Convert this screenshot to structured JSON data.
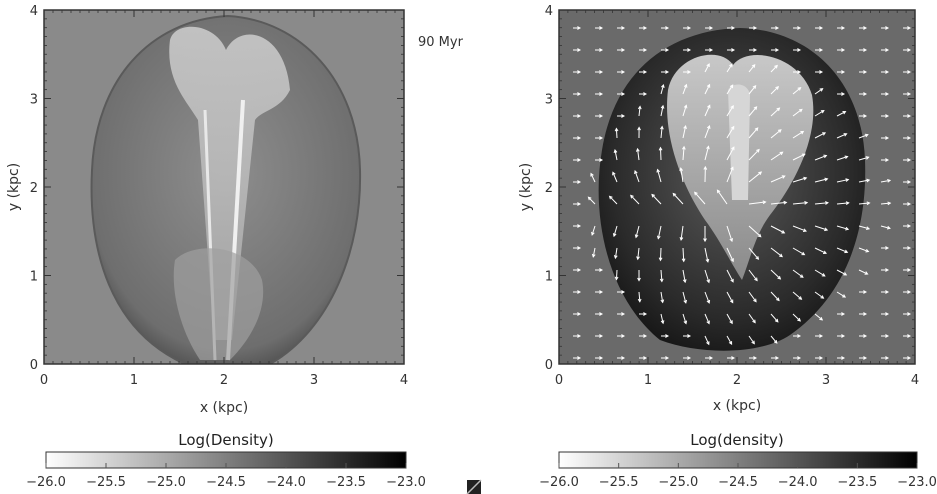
{
  "chart_data": [
    {
      "type": "heatmap",
      "quantity": "Log(Density)",
      "annotation": "90 Myr",
      "xlabel": "x (kpc)",
      "ylabel": "y (kpc)",
      "xlim": [
        0,
        4
      ],
      "ylim": [
        0,
        4
      ],
      "xticks": [
        "0",
        "1",
        "2",
        "3",
        "4"
      ],
      "yticks": [
        "0",
        "1",
        "2",
        "3",
        "4"
      ],
      "colorbar": {
        "title": "Log(Density)",
        "range": [
          -26.0,
          -23.0
        ],
        "ticks": [
          "−26.0",
          "−25.5",
          "−25.0",
          "−24.5",
          "−24.0",
          "−23.5",
          "−23.0"
        ],
        "colormap": "white-to-black"
      }
    },
    {
      "type": "heatmap",
      "quantity": "Log(density) with velocity vectors",
      "xlabel": "x (kpc)",
      "ylabel": "y (kpc)",
      "xlim": [
        0,
        4
      ],
      "ylim": [
        0,
        4
      ],
      "xticks": [
        "0",
        "1",
        "2",
        "3",
        "4"
      ],
      "yticks": [
        "0",
        "1",
        "2",
        "3",
        "4"
      ],
      "colorbar": {
        "title": "Log(density)",
        "range": [
          -26.0,
          -23.0
        ],
        "ticks": [
          "−26.0",
          "−25.5",
          "−25.0",
          "−24.5",
          "−24.0",
          "−23.5",
          "−23.0"
        ],
        "colormap": "white-to-black"
      }
    }
  ],
  "colors": {
    "background_gray": "#8a8a8a",
    "dark_gray": "#3a3a3a",
    "shell_dark": "#1e1e1e"
  }
}
